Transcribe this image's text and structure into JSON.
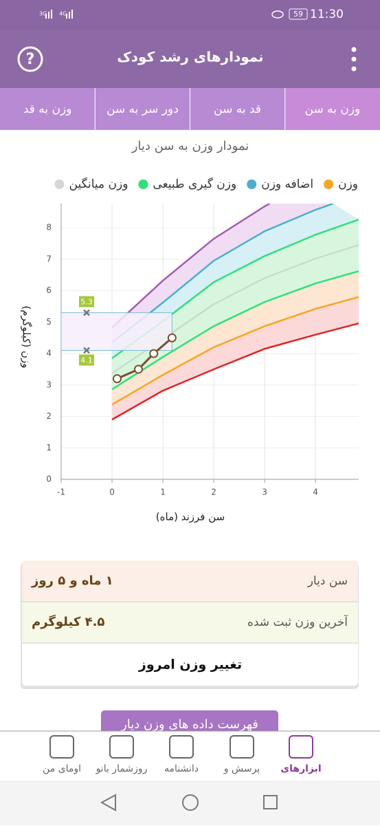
{
  "status_bar": {
    "signal_1": "3G",
    "signal_2": "4G",
    "battery": "59",
    "time": "11:30"
  },
  "header": {
    "title": "نمودارهای رشد کودک"
  },
  "tabs": [
    "وزن به سن",
    "قد به سن",
    "دور سر به سن",
    "وزن به قد"
  ],
  "chart_data": {
    "type": "line",
    "title": "نمودار وزن به سن دیار",
    "legend": [
      {
        "name": "وزن",
        "color": "#f5a623"
      },
      {
        "name": "اضافه وزن",
        "color": "#4aaed0"
      },
      {
        "name": "وزن گیری طبیعی",
        "color": "#2ee07a"
      },
      {
        "name": "وزن میانگین",
        "color": "#d6d6d6"
      }
    ],
    "x_label": "سن فرزند (ماه)",
    "y_label": "وزن (کیلوگرم)",
    "xlim": [
      -1,
      4.85
    ],
    "ylim": [
      0,
      8.77
    ],
    "xticks": [
      -1,
      0,
      1,
      2,
      3,
      4
    ],
    "yticks": [
      0,
      1,
      2,
      3,
      4,
      5,
      6,
      7,
      8
    ],
    "grid": true,
    "series": [
      {
        "color": "#e02424",
        "x": [
          0,
          1,
          2,
          3,
          4,
          4.85
        ],
        "values": [
          1.9,
          2.82,
          3.5,
          4.15,
          4.6,
          4.96
        ]
      },
      {
        "color": "#f5a623",
        "x": [
          0,
          1,
          2,
          3,
          4,
          4.85
        ],
        "values": [
          2.38,
          3.32,
          4.2,
          4.87,
          5.42,
          5.8
        ]
      },
      {
        "color": "#2ee07a",
        "x": [
          0,
          1,
          2,
          3,
          4,
          4.85
        ],
        "values": [
          2.86,
          3.89,
          4.87,
          5.64,
          6.23,
          6.62
        ]
      },
      {
        "color": "#c8dcd0",
        "x": [
          0,
          1,
          2,
          3,
          4,
          4.85
        ],
        "values": [
          3.37,
          4.46,
          5.57,
          6.4,
          7.02,
          7.45
        ]
      },
      {
        "color": "#2ee07a",
        "x": [
          0,
          1,
          2,
          3,
          4,
          4.85
        ],
        "values": [
          3.85,
          5.03,
          6.27,
          7.1,
          7.78,
          8.26
        ]
      },
      {
        "color": "#4aaed0",
        "x": [
          0,
          1,
          2,
          3,
          4,
          4.35
        ],
        "values": [
          4.35,
          5.62,
          6.95,
          7.89,
          8.57,
          8.77
        ]
      },
      {
        "color": "#a35ab8",
        "x": [
          0,
          1,
          2,
          3,
          3.1
        ],
        "values": [
          4.83,
          6.32,
          7.65,
          8.68,
          8.77
        ]
      },
      {
        "color": "#7a4e2a",
        "x": [
          0.1,
          0.52,
          0.82,
          1.18
        ],
        "values": [
          3.2,
          3.5,
          4.0,
          4.5
        ],
        "markers": true
      }
    ],
    "bands": [
      "#fcd9d9",
      "#fde6d2",
      "#d8f6de",
      "#d8f6de",
      "#d6f0f5",
      "#f1ddf3"
    ],
    "range_markers": {
      "x": -0.5,
      "values": [
        5.3,
        4.1
      ],
      "color": "#a4c93a"
    }
  },
  "info_card": {
    "rows": [
      {
        "label": "سن دیار",
        "value": "۱ ماه و ۵ روز"
      },
      {
        "label": "آخرین وزن ثبت شده",
        "value": "۴.۵ کیلوگرم"
      }
    ],
    "button": "تغییر وزن امروز"
  },
  "list_button": "فهرست داده های وزن دیار",
  "bottom_nav": [
    "ابزارهای",
    "پرسش و",
    "دانشنامه",
    "روزشمار بانو",
    "اومای من"
  ]
}
